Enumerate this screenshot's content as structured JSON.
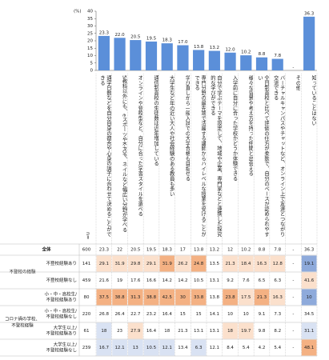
{
  "chart_data": {
    "type": "bar",
    "y_unit": "(%)",
    "categories": [
      "通学日数などを自分自身の都合や心身の調子に合わせて決めることができる",
      "5教科以外にも、eスポーツやK-POP、ネイルなど幅広い分野が学べる",
      "オンラインや登校型など、自分に合った学習スタイルを選べる",
      "通信制高校の生徒数は近年増加している",
      "大学生など年の近い大人や社会経験のある教員も多い",
      "学び直しから一般入試での大学合格も目指せる",
      "専門分野の最先端で活躍する講師からハイレベルな授業を受けることができる",
      "自分で学ぶテーマを設定して、地域や企業、専門家などと連携した探究的な学びができる",
      "入学前に自分に合った学校かどうか体験できる",
      "様々な背景や考え方を持った仲間と出会える",
      "全日制高校と比べて評価の仕方が柔軟で、自分のペースが認められやすい",
      "バーチャルキャンパスやチャットなど、オンライン上で友達とつながり交流できる",
      "その他",
      "知っていることはない"
    ],
    "values": [
      23.3,
      22.0,
      20.5,
      19.5,
      18.3,
      17.0,
      13.8,
      13.2,
      12.0,
      10.2,
      8.8,
      7.8,
      null,
      36.3
    ],
    "value_labels": [
      "23.3",
      "22.0",
      "20.5",
      "19.5",
      "18.3",
      "17.0",
      "13.8",
      "13.2",
      "12.0",
      "10.2",
      "8.8",
      "7.8",
      "-",
      "36.3"
    ],
    "color": "#5b8fd9",
    "ylim": [
      0,
      40
    ],
    "yticks": [
      0,
      5,
      10,
      15,
      20,
      25,
      30,
      35,
      40
    ]
  },
  "table": {
    "n_label": "n=",
    "total": {
      "label": "全体",
      "n": 600,
      "values": [
        23.3,
        22.0,
        20.5,
        19.5,
        18.3,
        17.0,
        13.8,
        13.2,
        12.0,
        10.2,
        8.8,
        7.8,
        "-",
        36.3
      ]
    },
    "groups": [
      {
        "label": [
          "不登校の経験"
        ],
        "rows": [
          {
            "label": [
              "不登校経験あり"
            ],
            "n": 141,
            "values": [
              29.1,
              31.9,
              29.8,
              29.1,
              31.9,
              26.2,
              24.8,
              13.5,
              21.3,
              18.4,
              16.3,
              12.8,
              "-",
              19.1
            ]
          },
          {
            "label": [
              "不登校経験なし"
            ],
            "n": 459,
            "values": [
              21.6,
              19.0,
              17.6,
              16.6,
              14.2,
              14.2,
              10.5,
              13.1,
              9.2,
              7.6,
              6.5,
              6.3,
              "-",
              41.6
            ]
          }
        ]
      },
      {
        "label": [
          "コロナ禍の学校、",
          "不登校経験"
        ],
        "rows": [
          {
            "label": [
              "小・中・高校生/",
              "不登校経験あり"
            ],
            "n": 80,
            "values": [
              37.5,
              38.8,
              31.3,
              38.8,
              42.5,
              30.0,
              33.8,
              13.8,
              23.8,
              17.5,
              21.3,
              16.3,
              "-",
              10.0
            ]
          },
          {
            "label": [
              "小・中・高校生/",
              "不登校経験なし"
            ],
            "n": 220,
            "values": [
              26.8,
              26.4,
              22.7,
              23.2,
              16.4,
              15.0,
              15.0,
              14.1,
              10.0,
              10.0,
              9.1,
              7.3,
              "-",
              34.5
            ]
          },
          {
            "label": [
              "大学生以上/",
              "不登校経験あり"
            ],
            "n": 61,
            "values": [
              18.0,
              23.0,
              27.9,
              16.4,
              18.0,
              21.3,
              13.1,
              13.1,
              18.0,
              19.7,
              9.8,
              8.2,
              "-",
              31.1
            ]
          },
          {
            "label": [
              "大学生以上/",
              "不登校経験なし"
            ],
            "n": 239,
            "values": [
              16.7,
              12.1,
              13.0,
              10.5,
              12.1,
              13.4,
              6.3,
              12.1,
              8.4,
              5.4,
              4.2,
              5.4,
              "-",
              48.1
            ]
          }
        ]
      }
    ]
  }
}
